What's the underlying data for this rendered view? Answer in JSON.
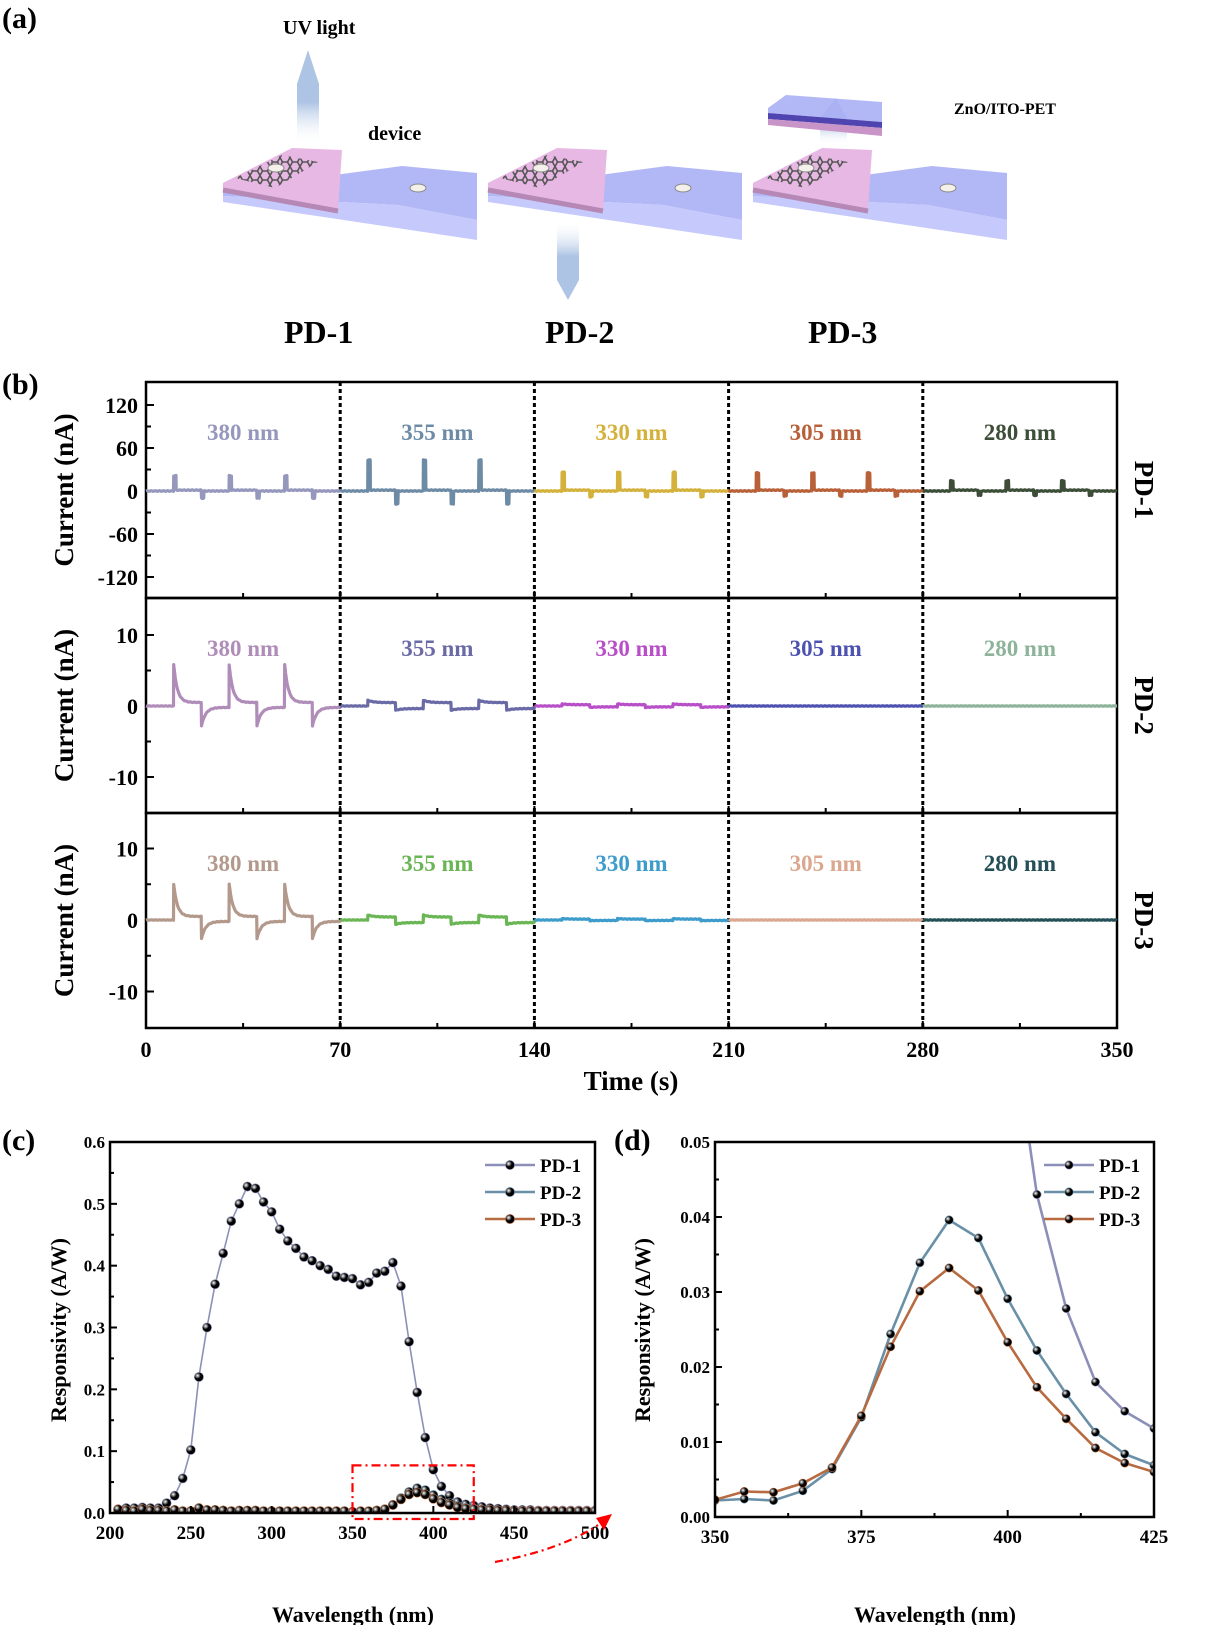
{
  "panel_a": {
    "label": "(a)",
    "uv_light_label": "UV light",
    "device_label": "device",
    "filter_label": "ZnO/ITO-PET",
    "devices": [
      "PD-1",
      "PD-2",
      "PD-3"
    ],
    "colors": {
      "top_layer": "#e8b8e4",
      "top_side": "#b588b5",
      "substrate": "#aab0f5",
      "substrate_side": "#c3c6fb",
      "arrow": "#aec4e4",
      "filter_dark": "#5045b0",
      "graphene": "#555555"
    }
  },
  "chart_data": [
    {
      "id": "b",
      "panel_label": "(b)",
      "type": "line",
      "title": "",
      "xlabel": "Time (s)",
      "ylabel": "Current (nA)",
      "xlim": [
        0,
        350
      ],
      "x_ticks": [
        0,
        70,
        140,
        210,
        280,
        350
      ],
      "x_minor_ticks": [
        35,
        105,
        175,
        245,
        315
      ],
      "segment_boundaries": [
        70,
        140,
        210,
        280
      ],
      "wavelength_labels": [
        "380 nm",
        "355 nm",
        "330 nm",
        "305 nm",
        "280 nm"
      ],
      "pulse_period_s": 20,
      "pulse_on_times_s": [
        10,
        30,
        50
      ],
      "subplots": [
        {
          "name": "PD-1",
          "ylim": [
            -150,
            150
          ],
          "y_ticks": [
            120,
            60,
            0,
            -60,
            -120
          ],
          "y_tick_labels": [
            "120",
            "60",
            "0",
            "-60",
            "-120"
          ],
          "segments": [
            {
              "wavelength": "380 nm",
              "color": "#9598bc",
              "on_peak": 20,
              "off_dip": -10,
              "shape": "spike"
            },
            {
              "wavelength": "355 nm",
              "color": "#6e8ba6",
              "on_peak": 42,
              "off_dip": -18,
              "shape": "spike"
            },
            {
              "wavelength": "330 nm",
              "color": "#d4b13a",
              "on_peak": 25,
              "off_dip": -8,
              "shape": "spike"
            },
            {
              "wavelength": "305 nm",
              "color": "#b86038",
              "on_peak": 24,
              "off_dip": -7,
              "shape": "spike"
            },
            {
              "wavelength": "280 nm",
              "color": "#3d4e38",
              "on_peak": 13,
              "off_dip": -6,
              "shape": "spike"
            }
          ]
        },
        {
          "name": "PD-2",
          "ylim": [
            -15,
            15
          ],
          "y_ticks": [
            10,
            0,
            -10
          ],
          "y_tick_labels": [
            "10",
            "0",
            "-10"
          ],
          "segments": [
            {
              "wavelength": "380 nm",
              "color": "#b08db8",
              "on_peak": 5.3,
              "off_dip": -2.6,
              "shape": "decay"
            },
            {
              "wavelength": "355 nm",
              "color": "#6a6aa6",
              "on_peak": 0.8,
              "off_dip": -0.6,
              "shape": "step"
            },
            {
              "wavelength": "330 nm",
              "color": "#b84fc8",
              "on_peak": 0.3,
              "off_dip": -0.2,
              "shape": "step"
            },
            {
              "wavelength": "305 nm",
              "color": "#4d52b0",
              "on_peak": 0.05,
              "off_dip": 0,
              "shape": "flat"
            },
            {
              "wavelength": "280 nm",
              "color": "#8db39a",
              "on_peak": 0.05,
              "off_dip": 0,
              "shape": "flat"
            }
          ]
        },
        {
          "name": "PD-3",
          "ylim": [
            -15,
            15
          ],
          "y_ticks": [
            10,
            0,
            -10
          ],
          "y_tick_labels": [
            "10",
            "0",
            "-10"
          ],
          "segments": [
            {
              "wavelength": "380 nm",
              "color": "#b3998c",
              "on_peak": 4.5,
              "off_dip": -2.4,
              "shape": "decay"
            },
            {
              "wavelength": "355 nm",
              "color": "#6ab554",
              "on_peak": 0.7,
              "off_dip": -0.6,
              "shape": "step"
            },
            {
              "wavelength": "330 nm",
              "color": "#3d9ccc",
              "on_peak": 0.2,
              "off_dip": -0.1,
              "shape": "step"
            },
            {
              "wavelength": "305 nm",
              "color": "#dba88f",
              "on_peak": 0.05,
              "off_dip": 0,
              "shape": "flat"
            },
            {
              "wavelength": "280 nm",
              "color": "#244f57",
              "on_peak": 0.05,
              "off_dip": 0,
              "shape": "flat"
            }
          ]
        }
      ]
    },
    {
      "id": "c",
      "panel_label": "(c)",
      "type": "line",
      "title": "",
      "xlabel": "Wavelength (nm)",
      "ylabel": "Responsivity (A/W)",
      "xlim": [
        200,
        500
      ],
      "ylim": [
        0,
        0.6
      ],
      "x_ticks": [
        200,
        250,
        300,
        350,
        400,
        450,
        500
      ],
      "y_ticks": [
        0.0,
        0.1,
        0.2,
        0.3,
        0.4,
        0.5,
        0.6
      ],
      "y_tick_labels": [
        "0.0",
        "0.1",
        "0.2",
        "0.3",
        "0.4",
        "0.5",
        "0.6"
      ],
      "legend": "top-right",
      "zoom_box": {
        "x_range": [
          350,
          425
        ],
        "y_range": [
          0,
          0.077
        ]
      },
      "x": [
        205,
        210,
        215,
        220,
        225,
        230,
        235,
        240,
        245,
        250,
        255,
        260,
        265,
        270,
        275,
        280,
        285,
        290,
        295,
        300,
        305,
        310,
        315,
        320,
        325,
        330,
        335,
        340,
        345,
        350,
        355,
        360,
        365,
        370,
        375,
        380,
        385,
        390,
        395,
        400,
        405,
        410,
        415,
        420,
        425,
        430,
        435,
        440,
        445,
        450,
        455,
        460,
        465,
        470,
        475,
        480,
        485,
        490,
        495,
        500
      ],
      "series": [
        {
          "name": "PD-1",
          "color": "#8c90b8",
          "values": [
            0.006,
            0.008,
            0.008,
            0.009,
            0.008,
            0.008,
            0.016,
            0.028,
            0.056,
            0.102,
            0.22,
            0.3,
            0.37,
            0.42,
            0.472,
            0.5,
            0.528,
            0.525,
            0.503,
            0.487,
            0.459,
            0.44,
            0.428,
            0.414,
            0.408,
            0.4,
            0.394,
            0.383,
            0.381,
            0.379,
            0.369,
            0.373,
            0.388,
            0.391,
            0.405,
            0.367,
            0.277,
            0.195,
            0.122,
            0.07,
            0.043,
            0.028,
            0.018,
            0.014,
            0.012,
            0.01,
            0.008,
            0.007,
            0.006,
            0.005,
            0.005,
            0.005,
            0.004,
            0.004,
            0.004,
            0.004,
            0.004,
            0.004,
            0.004,
            0.004
          ]
        },
        {
          "name": "PD-2",
          "color": "#6a90a8",
          "values": [
            0.003,
            0.003,
            0.003,
            0.003,
            0.003,
            0.003,
            0.003,
            0.003,
            0.003,
            0.003,
            0.004,
            0.004,
            0.004,
            0.004,
            0.003,
            0.003,
            0.003,
            0.003,
            0.003,
            0.003,
            0.003,
            0.003,
            0.003,
            0.003,
            0.003,
            0.003,
            0.003,
            0.003,
            0.003,
            0.002,
            0.002,
            0.002,
            0.004,
            0.006,
            0.013,
            0.024,
            0.034,
            0.04,
            0.037,
            0.029,
            0.022,
            0.016,
            0.011,
            0.008,
            0.007,
            0.005,
            0.004,
            0.004,
            0.003,
            0.003,
            0.003,
            0.003,
            0.003,
            0.003,
            0.003,
            0.003,
            0.003,
            0.003,
            0.003,
            0.003
          ]
        },
        {
          "name": "PD-3",
          "color": "#b86a40",
          "values": [
            0.006,
            0.004,
            0.003,
            0.006,
            0.004,
            0.004,
            0.003,
            0.005,
            0.003,
            0.003,
            0.008,
            0.005,
            0.005,
            0.004,
            0.003,
            0.004,
            0.004,
            0.004,
            0.003,
            0.003,
            0.003,
            0.003,
            0.003,
            0.003,
            0.003,
            0.003,
            0.003,
            0.003,
            0.003,
            0.002,
            0.003,
            0.003,
            0.004,
            0.006,
            0.013,
            0.022,
            0.03,
            0.033,
            0.03,
            0.023,
            0.017,
            0.013,
            0.009,
            0.007,
            0.006,
            0.005,
            0.005,
            0.004,
            0.004,
            0.003,
            0.003,
            0.003,
            0.003,
            0.003,
            0.003,
            0.003,
            0.003,
            0.003,
            0.003,
            0.003
          ]
        }
      ]
    },
    {
      "id": "d",
      "panel_label": "(d)",
      "type": "line",
      "title": "",
      "xlabel": "Wavelength (nm)",
      "ylabel": "Responsivity (A/W)",
      "xlim": [
        350,
        425
      ],
      "ylim": [
        0,
        0.05
      ],
      "x_ticks": [
        350,
        375,
        400,
        425
      ],
      "x_minor_ticks": [
        362.5,
        387.5,
        412.5
      ],
      "y_ticks": [
        0.0,
        0.01,
        0.02,
        0.03,
        0.04,
        0.05
      ],
      "y_tick_labels": [
        "0.00",
        "0.01",
        "0.02",
        "0.03",
        "0.04",
        "0.05"
      ],
      "legend": "top-right",
      "x": [
        350,
        355,
        360,
        365,
        370,
        375,
        380,
        385,
        390,
        395,
        400,
        405,
        410,
        415,
        420,
        425
      ],
      "series": [
        {
          "name": "PD-1",
          "color": "#8c90b8",
          "values": [
            null,
            null,
            null,
            null,
            null,
            null,
            null,
            null,
            null,
            null,
            0.07,
            0.043,
            0.0278,
            0.018,
            0.0141,
            0.0118
          ]
        },
        {
          "name": "PD-2",
          "color": "#6a90a8",
          "values": [
            0.0022,
            0.0024,
            0.0022,
            0.0035,
            0.0064,
            0.0133,
            0.0244,
            0.0339,
            0.0396,
            0.0372,
            0.0291,
            0.0222,
            0.0164,
            0.0113,
            0.0084,
            0.0069
          ]
        },
        {
          "name": "PD-3",
          "color": "#b86a40",
          "values": [
            0.0023,
            0.0034,
            0.0033,
            0.0045,
            0.0066,
            0.0135,
            0.0227,
            0.0301,
            0.0332,
            0.0302,
            0.0233,
            0.0173,
            0.0131,
            0.0092,
            0.0072,
            0.006
          ]
        }
      ]
    }
  ],
  "annotation_colors": {
    "zoom_box": "#ff0000"
  }
}
